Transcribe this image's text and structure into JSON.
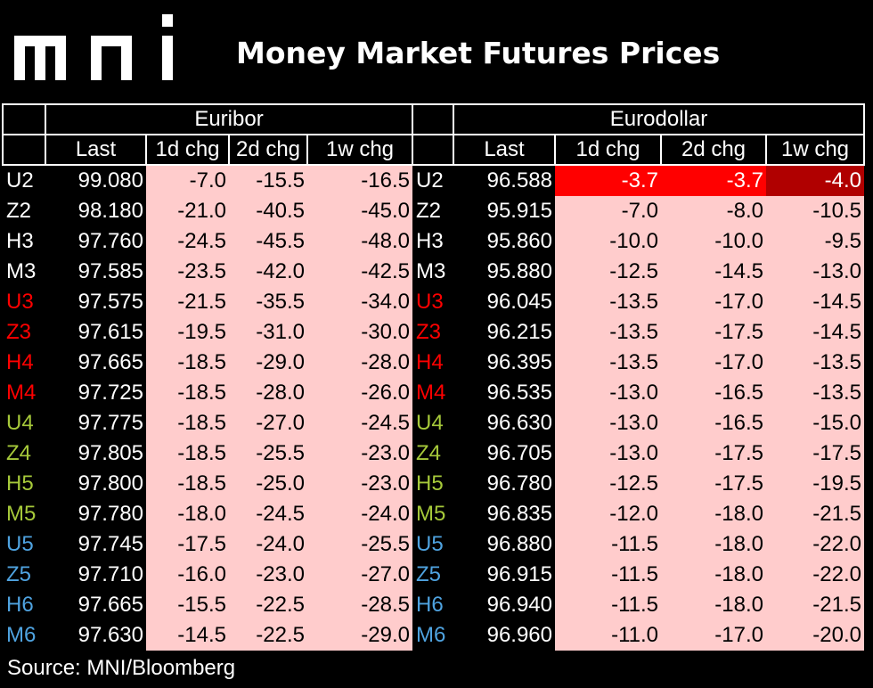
{
  "brand": "mni",
  "title": "Money Market Futures Prices",
  "source": "Source: MNI/Bloomberg",
  "colors": {
    "background": "#000000",
    "cell": "#ffcccc",
    "highlight": "#ff0000",
    "highlight_dark": "#b00000",
    "year2022": "#ffffff",
    "year2023_late": "#ff0000",
    "year2024": "#a6c93a",
    "year2025": "#4fa3e0"
  },
  "chart_data": {
    "type": "table",
    "groups": [
      "Euribor",
      "Eurodollar"
    ],
    "columns": [
      "Last",
      "1d chg",
      "2d chg",
      "1w chg"
    ],
    "rows": [
      {
        "contract": "U2",
        "color": "#ffffff",
        "euribor": [
          "99.080",
          "-7.0",
          "-15.5",
          "-16.5"
        ],
        "eurodollar": [
          "96.588",
          "-3.7",
          "-3.7",
          "-4.0"
        ]
      },
      {
        "contract": "Z2",
        "color": "#ffffff",
        "euribor": [
          "98.180",
          "-21.0",
          "-40.5",
          "-45.0"
        ],
        "eurodollar": [
          "95.915",
          "-7.0",
          "-8.0",
          "-10.5"
        ]
      },
      {
        "contract": "H3",
        "color": "#ffffff",
        "euribor": [
          "97.760",
          "-24.5",
          "-45.5",
          "-48.0"
        ],
        "eurodollar": [
          "95.860",
          "-10.0",
          "-10.0",
          "-9.5"
        ]
      },
      {
        "contract": "M3",
        "color": "#ffffff",
        "euribor": [
          "97.585",
          "-23.5",
          "-42.0",
          "-42.5"
        ],
        "eurodollar": [
          "95.880",
          "-12.5",
          "-14.5",
          "-13.0"
        ]
      },
      {
        "contract": "U3",
        "color": "#ff0000",
        "euribor": [
          "97.575",
          "-21.5",
          "-35.5",
          "-34.0"
        ],
        "eurodollar": [
          "96.045",
          "-13.5",
          "-17.0",
          "-14.5"
        ]
      },
      {
        "contract": "Z3",
        "color": "#ff0000",
        "euribor": [
          "97.615",
          "-19.5",
          "-31.0",
          "-30.0"
        ],
        "eurodollar": [
          "96.215",
          "-13.5",
          "-17.5",
          "-14.5"
        ]
      },
      {
        "contract": "H4",
        "color": "#ff0000",
        "euribor": [
          "97.665",
          "-18.5",
          "-29.0",
          "-28.0"
        ],
        "eurodollar": [
          "96.395",
          "-13.5",
          "-17.0",
          "-13.5"
        ]
      },
      {
        "contract": "M4",
        "color": "#ff0000",
        "euribor": [
          "97.725",
          "-18.5",
          "-28.0",
          "-26.0"
        ],
        "eurodollar": [
          "96.535",
          "-13.0",
          "-16.5",
          "-13.5"
        ]
      },
      {
        "contract": "U4",
        "color": "#a6c93a",
        "euribor": [
          "97.775",
          "-18.5",
          "-27.0",
          "-24.5"
        ],
        "eurodollar": [
          "96.630",
          "-13.0",
          "-16.5",
          "-15.0"
        ]
      },
      {
        "contract": "Z4",
        "color": "#a6c93a",
        "euribor": [
          "97.805",
          "-18.5",
          "-25.5",
          "-23.0"
        ],
        "eurodollar": [
          "96.705",
          "-13.0",
          "-17.5",
          "-17.5"
        ]
      },
      {
        "contract": "H5",
        "color": "#a6c93a",
        "euribor": [
          "97.800",
          "-18.5",
          "-25.0",
          "-23.0"
        ],
        "eurodollar": [
          "96.780",
          "-12.5",
          "-17.5",
          "-19.5"
        ]
      },
      {
        "contract": "M5",
        "color": "#a6c93a",
        "euribor": [
          "97.780",
          "-18.0",
          "-24.5",
          "-24.0"
        ],
        "eurodollar": [
          "96.835",
          "-12.0",
          "-18.0",
          "-21.5"
        ]
      },
      {
        "contract": "U5",
        "color": "#4fa3e0",
        "euribor": [
          "97.745",
          "-17.5",
          "-24.0",
          "-25.5"
        ],
        "eurodollar": [
          "96.880",
          "-11.5",
          "-18.0",
          "-22.0"
        ]
      },
      {
        "contract": "Z5",
        "color": "#4fa3e0",
        "euribor": [
          "97.710",
          "-16.0",
          "-23.0",
          "-27.0"
        ],
        "eurodollar": [
          "96.915",
          "-11.5",
          "-18.0",
          "-22.0"
        ]
      },
      {
        "contract": "H6",
        "color": "#4fa3e0",
        "euribor": [
          "97.665",
          "-15.5",
          "-22.5",
          "-28.5"
        ],
        "eurodollar": [
          "96.940",
          "-11.5",
          "-18.0",
          "-21.5"
        ]
      },
      {
        "contract": "M6",
        "color": "#4fa3e0",
        "euribor": [
          "97.630",
          "-14.5",
          "-22.5",
          "-29.0"
        ],
        "eurodollar": [
          "96.960",
          "-11.0",
          "-17.0",
          "-20.0"
        ]
      }
    ],
    "highlights": [
      {
        "row": 0,
        "group": "eurodollar",
        "col": 1,
        "level": "hot"
      },
      {
        "row": 0,
        "group": "eurodollar",
        "col": 2,
        "level": "hot"
      },
      {
        "row": 0,
        "group": "eurodollar",
        "col": 3,
        "level": "hot2"
      }
    ]
  }
}
